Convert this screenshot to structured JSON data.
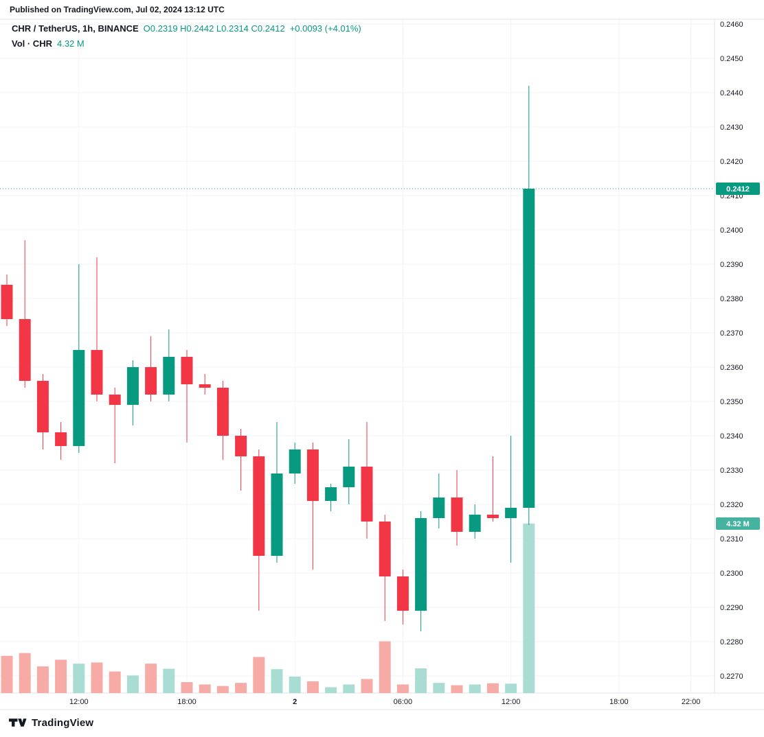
{
  "header": {
    "published": "Published on TradingView.com, Jul 02, 2024 13:12 UTC"
  },
  "legend": {
    "symbol": "CHR / TetherUS, 1h, BINANCE",
    "ohlc": "O0.2319 H0.2442 L0.2314 C0.2412",
    "change": "+0.0093 (+4.01%)",
    "volume_label": "Vol · CHR",
    "volume_value": "4.32 M"
  },
  "footer": {
    "brand": "TradingView"
  },
  "colors": {
    "accent": "#089981",
    "text": "#131722",
    "axis_text": "#131722",
    "up": "#089981",
    "down": "#f23645",
    "vol_up": "#a9ddd3",
    "vol_down": "#f7aba6",
    "grid": "#f0f3fa",
    "separator": "#e0e3eb",
    "badge_price_bg": "#089981",
    "badge_price_text": "#ffffff",
    "badge_vol_bg": "#46b3a1",
    "badge_vol_text": "#ffffff",
    "last_price_line": "#089981"
  },
  "chart_data": {
    "type": "candlestick",
    "title": "CHR / TetherUS, 1h, BINANCE",
    "interval": "1h",
    "legend_ohlc": {
      "open": 0.2319,
      "high": 0.2442,
      "low": 0.2314,
      "close": 0.2412,
      "change": 0.0093,
      "change_pct": 4.01
    },
    "last_price": "0.2412",
    "last_volume_label": "4.32 M",
    "price_axis": {
      "max": 0.246,
      "min": 0.227,
      "step": 0.001
    },
    "volume_axis": {
      "max_bar": 4.32,
      "unit": "M"
    },
    "price_ticks": [
      "0.2460",
      "0.2450",
      "0.2440",
      "0.2430",
      "0.2420",
      "0.2410",
      "0.2400",
      "0.2390",
      "0.2380",
      "0.2370",
      "0.2360",
      "0.2350",
      "0.2340",
      "0.2330",
      "0.2320",
      "0.2310",
      "0.2300",
      "0.2290",
      "0.2280",
      "0.2270"
    ],
    "time_ticks": [
      {
        "index": 4,
        "label": "12:00",
        "major": false
      },
      {
        "index": 10,
        "label": "18:00",
        "major": false
      },
      {
        "index": 16,
        "label": "2",
        "major": true
      },
      {
        "index": 22,
        "label": "06:00",
        "major": false
      },
      {
        "index": 28,
        "label": "12:00",
        "major": false
      },
      {
        "index": 34,
        "label": "18:00",
        "major": false
      },
      {
        "index": 38,
        "label": "22:00",
        "major": false
      }
    ],
    "candles": [
      {
        "t": "Jul 1 08:00",
        "o": 0.2384,
        "h": 0.2387,
        "l": 0.2372,
        "c": 0.2374,
        "v": 0.95
      },
      {
        "t": "Jul 1 09:00",
        "o": 0.2374,
        "h": 0.2397,
        "l": 0.2354,
        "c": 0.2356,
        "v": 1.02
      },
      {
        "t": "Jul 1 10:00",
        "o": 0.2356,
        "h": 0.2358,
        "l": 0.2336,
        "c": 0.2341,
        "v": 0.68
      },
      {
        "t": "Jul 1 11:00",
        "o": 0.2341,
        "h": 0.2344,
        "l": 0.2333,
        "c": 0.2337,
        "v": 0.85
      },
      {
        "t": "Jul 1 12:00",
        "o": 0.2337,
        "h": 0.239,
        "l": 0.2335,
        "c": 0.2365,
        "v": 0.75
      },
      {
        "t": "Jul 1 13:00",
        "o": 0.2365,
        "h": 0.2392,
        "l": 0.235,
        "c": 0.2352,
        "v": 0.78
      },
      {
        "t": "Jul 1 14:00",
        "o": 0.2352,
        "h": 0.2354,
        "l": 0.2332,
        "c": 0.2349,
        "v": 0.55
      },
      {
        "t": "Jul 1 15:00",
        "o": 0.2349,
        "h": 0.2362,
        "l": 0.2343,
        "c": 0.236,
        "v": 0.45
      },
      {
        "t": "Jul 1 16:00",
        "o": 0.236,
        "h": 0.2369,
        "l": 0.235,
        "c": 0.2352,
        "v": 0.75
      },
      {
        "t": "Jul 1 17:00",
        "o": 0.2352,
        "h": 0.2371,
        "l": 0.235,
        "c": 0.2363,
        "v": 0.62
      },
      {
        "t": "Jul 1 18:00",
        "o": 0.2363,
        "h": 0.2365,
        "l": 0.2338,
        "c": 0.2355,
        "v": 0.28
      },
      {
        "t": "Jul 1 19:00",
        "o": 0.2355,
        "h": 0.2358,
        "l": 0.2352,
        "c": 0.2354,
        "v": 0.22
      },
      {
        "t": "Jul 1 20:00",
        "o": 0.2354,
        "h": 0.2356,
        "l": 0.2333,
        "c": 0.234,
        "v": 0.18
      },
      {
        "t": "Jul 1 21:00",
        "o": 0.234,
        "h": 0.2342,
        "l": 0.2324,
        "c": 0.2334,
        "v": 0.26
      },
      {
        "t": "Jul 1 22:00",
        "o": 0.2334,
        "h": 0.2336,
        "l": 0.2289,
        "c": 0.2305,
        "v": 0.92
      },
      {
        "t": "Jul 1 23:00",
        "o": 0.2305,
        "h": 0.2344,
        "l": 0.2303,
        "c": 0.2329,
        "v": 0.61
      },
      {
        "t": "Jul 2 00:00",
        "o": 0.2329,
        "h": 0.2338,
        "l": 0.2326,
        "c": 0.2336,
        "v": 0.42
      },
      {
        "t": "Jul 2 01:00",
        "o": 0.2336,
        "h": 0.2338,
        "l": 0.2301,
        "c": 0.2321,
        "v": 0.3
      },
      {
        "t": "Jul 2 02:00",
        "o": 0.2321,
        "h": 0.2326,
        "l": 0.2318,
        "c": 0.2325,
        "v": 0.15
      },
      {
        "t": "Jul 2 03:00",
        "o": 0.2325,
        "h": 0.2339,
        "l": 0.232,
        "c": 0.2331,
        "v": 0.22
      },
      {
        "t": "Jul 2 04:00",
        "o": 0.2331,
        "h": 0.2344,
        "l": 0.231,
        "c": 0.2315,
        "v": 0.36
      },
      {
        "t": "Jul 2 05:00",
        "o": 0.2315,
        "h": 0.2317,
        "l": 0.2286,
        "c": 0.2299,
        "v": 1.32
      },
      {
        "t": "Jul 2 06:00",
        "o": 0.2299,
        "h": 0.2301,
        "l": 0.2285,
        "c": 0.2289,
        "v": 0.22
      },
      {
        "t": "Jul 2 07:00",
        "o": 0.2289,
        "h": 0.2318,
        "l": 0.2283,
        "c": 0.2316,
        "v": 0.63
      },
      {
        "t": "Jul 2 08:00",
        "o": 0.2316,
        "h": 0.2329,
        "l": 0.2313,
        "c": 0.2322,
        "v": 0.26
      },
      {
        "t": "Jul 2 09:00",
        "o": 0.2322,
        "h": 0.233,
        "l": 0.2308,
        "c": 0.2312,
        "v": 0.2
      },
      {
        "t": "Jul 2 10:00",
        "o": 0.2312,
        "h": 0.232,
        "l": 0.231,
        "c": 0.2317,
        "v": 0.22
      },
      {
        "t": "Jul 2 11:00",
        "o": 0.2317,
        "h": 0.2334,
        "l": 0.2315,
        "c": 0.2316,
        "v": 0.25
      },
      {
        "t": "Jul 2 12:00",
        "o": 0.2316,
        "h": 0.234,
        "l": 0.2303,
        "c": 0.2319,
        "v": 0.24
      },
      {
        "t": "Jul 2 13:00",
        "o": 0.2319,
        "h": 0.2442,
        "l": 0.2314,
        "c": 0.2412,
        "v": 4.32
      }
    ]
  }
}
